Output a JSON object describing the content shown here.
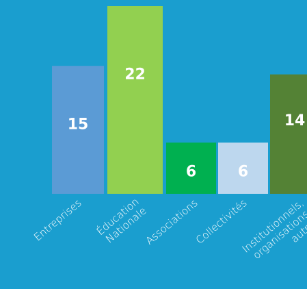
{
  "chart_data": {
    "type": "bar",
    "categories": [
      [
        "Entreprises"
      ],
      [
        "Éducation",
        "Nationale"
      ],
      [
        "Associations"
      ],
      [
        "Collectivités"
      ],
      [
        "Institutionnels,",
        "organisations,",
        "autres"
      ]
    ],
    "values": [
      15,
      22,
      6,
      6,
      14
    ],
    "data_labels": [
      "15",
      "22",
      "6",
      "6",
      "14"
    ],
    "colors": [
      "#5b9bd5",
      "#92d050",
      "#00b050",
      "#bdd7ee",
      "#548235"
    ],
    "ylim": [
      0,
      22
    ],
    "background": "#1a9ecf",
    "label_color": "#ffffff",
    "grid": false,
    "legend": "none"
  }
}
